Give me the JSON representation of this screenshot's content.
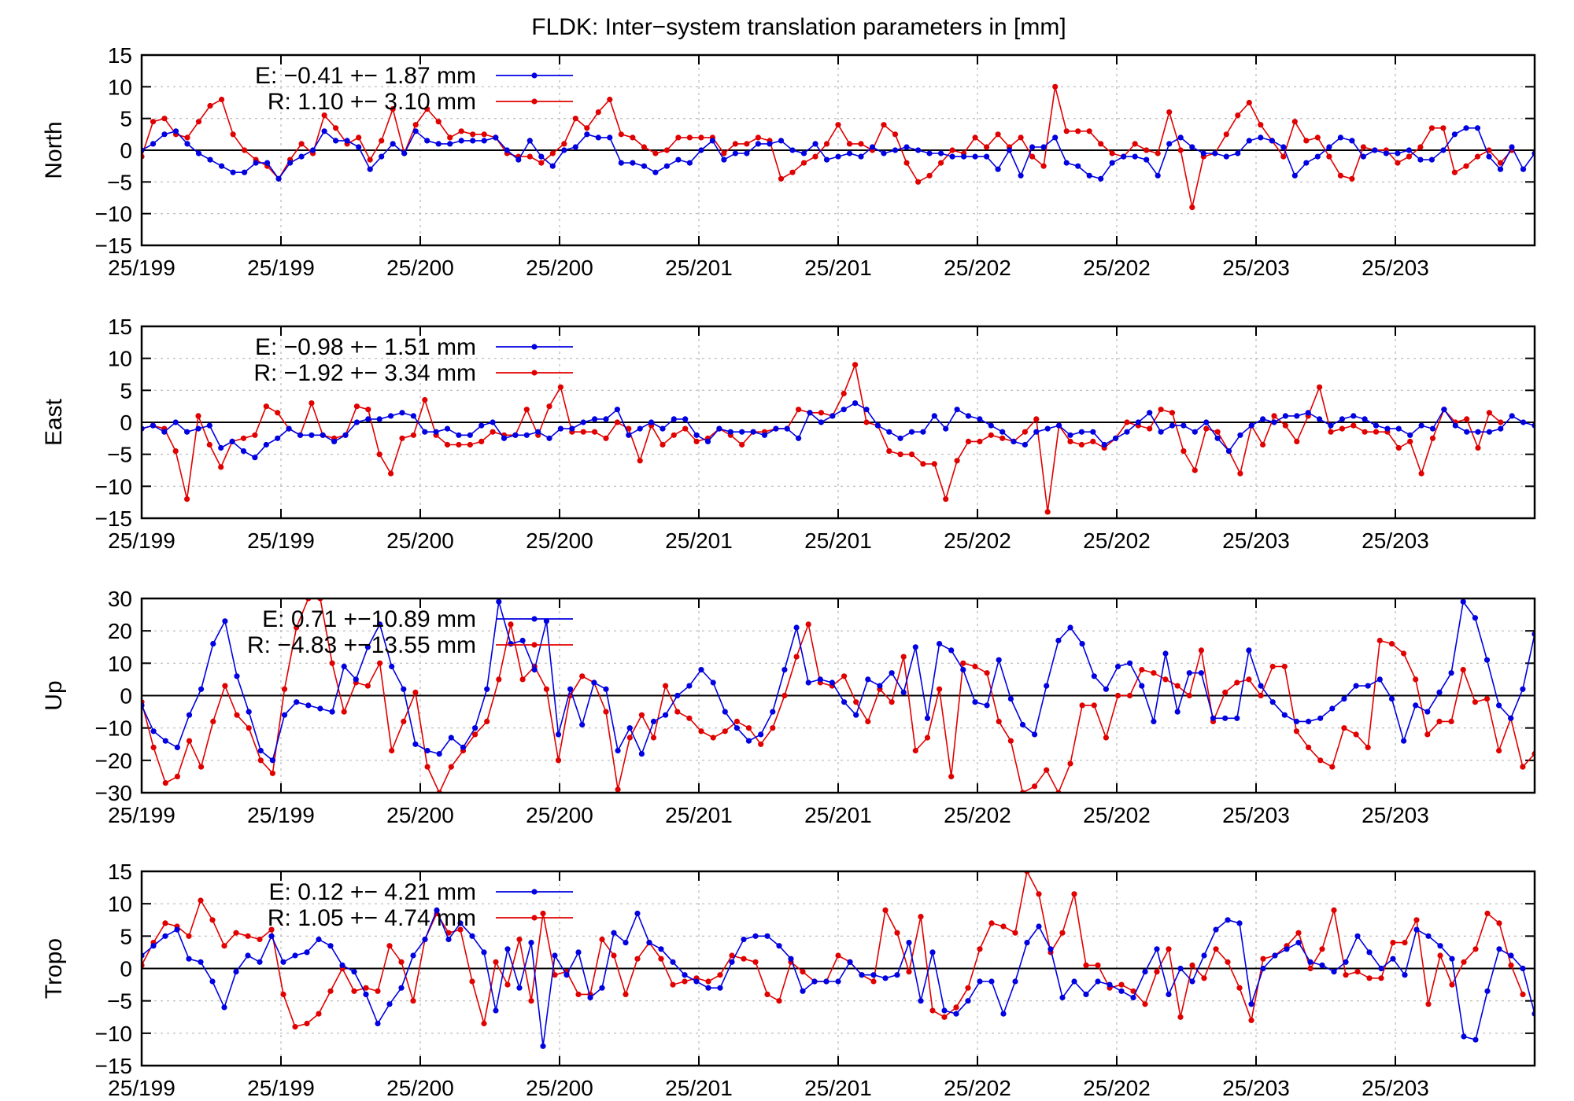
{
  "figure": {
    "title": "FLDK: Inter−system translation parameters in [mm]"
  },
  "colors": {
    "E": "#0000e0",
    "R": "#e00000"
  },
  "x_tick_labels": [
    "25/199",
    "25/199",
    "25/200",
    "25/200",
    "25/201",
    "25/201",
    "25/202",
    "25/202",
    "25/203",
    "25/203"
  ],
  "chart_data": [
    {
      "type": "line",
      "ylabel": "North",
      "ylim": [
        -15,
        15
      ],
      "yticks": [
        -15,
        -10,
        -5,
        0,
        5,
        10,
        15
      ],
      "grid": true,
      "legend_placement": "top-left",
      "series": [
        {
          "name": "E:  −0.41 +− 1.87 mm",
          "values": [
            0,
            1,
            2.5,
            3,
            1,
            -0.5,
            -1.5,
            -2.5,
            -3.5,
            -3.5,
            -2,
            -2,
            -4.5,
            -2,
            -1,
            0,
            3,
            1.5,
            1.5,
            0.5,
            -3,
            -1,
            1,
            -0.5,
            3,
            1.5,
            1,
            1,
            1.5,
            1.5,
            1.5,
            2,
            0,
            -1.5,
            1.5,
            -1,
            -2.5,
            0,
            0.5,
            2.5,
            2,
            2,
            -2,
            -2,
            -2.5,
            -3.5,
            -2.5,
            -1.5,
            -2,
            0,
            1.5,
            -1.5,
            -0.5,
            -0.5,
            1,
            1,
            1.5,
            0,
            -0.5,
            1,
            -1.5,
            -1,
            -0.5,
            -1,
            0.5,
            -0.5,
            0,
            0.5,
            0,
            -0.5,
            -0.5,
            -1,
            -1,
            -1,
            -1,
            -3,
            0,
            -4,
            0.5,
            0.5,
            2,
            -2,
            -2.5,
            -4,
            -4.5,
            -2,
            -1,
            -1,
            -1.5,
            -4,
            1,
            2,
            0.5,
            -0.5,
            -0.5,
            -1,
            -0.5,
            1.5,
            2,
            1.5,
            0.5,
            -4,
            -2,
            -1,
            0.5,
            2,
            1.5,
            -1,
            0,
            -0.5,
            -0.5,
            0,
            -1.5,
            -1.5,
            0,
            2.5,
            3.5,
            3.5,
            -1,
            -3,
            0.5,
            -3,
            -0.5
          ]
        },
        {
          "name": "R:   1.10 +− 3.10 mm",
          "values": [
            -1,
            4.5,
            5,
            2.5,
            2,
            4.5,
            7,
            8,
            2.5,
            0,
            -1.5,
            -2.5,
            -4.5,
            -1.5,
            1,
            -0.5,
            5.5,
            3.5,
            1,
            2,
            -1.5,
            1.5,
            6.5,
            -0.5,
            4,
            6.5,
            4.5,
            2,
            3,
            2.5,
            2.5,
            2,
            -0.5,
            -1,
            -1,
            -2,
            -0.5,
            1,
            5,
            3.5,
            6,
            8,
            2.5,
            2,
            0.5,
            -0.5,
            0,
            2,
            2,
            2,
            2,
            -0.5,
            1,
            1,
            2,
            1.5,
            -4.5,
            -3.5,
            -2,
            -1,
            1,
            4,
            1,
            1,
            0,
            4,
            2.5,
            -2,
            -5,
            -4,
            -2,
            0,
            -0.5,
            2,
            0.5,
            2.5,
            0.5,
            2,
            -1,
            -2.5,
            10,
            3,
            3,
            3,
            1,
            -0.5,
            -1,
            1,
            0,
            -0.5,
            6,
            0,
            -9,
            -1,
            -0.5,
            2.5,
            5.5,
            7.5,
            4,
            1.5,
            -1,
            4.5,
            1.5,
            2,
            -1,
            -4,
            -4.5,
            0.5,
            0,
            0,
            -2,
            -1,
            0.5,
            3.5,
            3.5,
            -3.5,
            -2.5,
            -1,
            0,
            -2,
            0
          ]
        }
      ]
    },
    {
      "type": "line",
      "ylabel": "East",
      "ylim": [
        -15,
        15
      ],
      "yticks": [
        -15,
        -10,
        -5,
        0,
        5,
        10,
        15
      ],
      "grid": true,
      "legend_placement": "top-left",
      "series": [
        {
          "name": "E:  −0.98 +− 1.51 mm",
          "values": [
            -1,
            -0.5,
            -1.5,
            0,
            -1.5,
            -1,
            -0.5,
            -4,
            -3,
            -4.5,
            -5.5,
            -3.5,
            -2.5,
            -1,
            -2,
            -2,
            -2,
            -3,
            -2,
            0,
            0.5,
            0.5,
            1,
            1.5,
            1,
            -1.5,
            -1.5,
            -1,
            -2,
            -2,
            -0.5,
            0,
            -2.5,
            -2,
            -2,
            -1.5,
            -2.5,
            -1,
            -1,
            0,
            0.5,
            0.5,
            2,
            -2,
            -1,
            0,
            -1,
            0.5,
            0.5,
            -2,
            -3,
            -1,
            -1.5,
            -1.5,
            -1.5,
            -2,
            -1,
            -1,
            -2.5,
            1.5,
            0,
            1,
            2,
            3,
            2,
            -0.5,
            -1.5,
            -2.5,
            -1.5,
            -1.5,
            1,
            -1,
            2,
            1,
            0.5,
            -0.5,
            -1.5,
            -3,
            -3.5,
            -1.5,
            -1,
            -0.5,
            -2,
            -1.5,
            -1.5,
            -3.5,
            -2.5,
            -1.5,
            0,
            1.5,
            -1.5,
            -0.5,
            -0.5,
            -1.5,
            0,
            -2.5,
            -4.5,
            -2,
            -0.5,
            0.5,
            0,
            1,
            1,
            1.5,
            0.5,
            -0.5,
            0.5,
            1,
            0.5,
            -0.5,
            -1,
            -1,
            -2,
            -0.5,
            -1,
            2,
            -0.5,
            -1.5,
            -1.5,
            -1.5,
            -1,
            1,
            0,
            -0.5
          ]
        },
        {
          "name": "R:  −1.92 +− 3.34 mm",
          "values": [
            -1,
            -0.5,
            -1,
            -4.5,
            -12,
            1,
            -3.5,
            -7,
            -3,
            -2.5,
            -2,
            2.5,
            1.5,
            -1,
            -2,
            3,
            -2,
            -2.5,
            -2,
            2.5,
            2,
            -5,
            -8,
            -2.5,
            -2,
            3.5,
            -2,
            -3.5,
            -3.5,
            -3.5,
            -3,
            -1.5,
            -2,
            -2,
            2,
            -2,
            2.5,
            5.5,
            -1.5,
            -1.5,
            -1.5,
            -2.5,
            0,
            -1,
            -6,
            -0.5,
            -3.5,
            -2,
            -1,
            -3,
            -2.5,
            -1,
            -2,
            -3.5,
            -1.5,
            -1.5,
            -1,
            -1,
            2,
            1.5,
            1.5,
            1,
            4.5,
            9,
            0,
            -0.5,
            -4.5,
            -5,
            -5,
            -6.5,
            -6.5,
            -12,
            -6,
            -3,
            -3,
            -2,
            -2.5,
            -3,
            -1.5,
            0.5,
            -14,
            -0.5,
            -3,
            -3.5,
            -3,
            -4,
            -2.5,
            0,
            -0.5,
            -1,
            2,
            1.5,
            -4.5,
            -7.5,
            -1,
            -1.5,
            -4.5,
            -8,
            -0.5,
            -3.5,
            1,
            -0.5,
            -3,
            1,
            5.5,
            -1.5,
            -1,
            -0.5,
            -1.5,
            -1.5,
            -1.5,
            -4,
            -3,
            -8,
            -2.5,
            2,
            0,
            0.5,
            -4,
            1.5,
            0
          ]
        }
      ]
    },
    {
      "type": "line",
      "ylabel": "Up",
      "ylim": [
        -30,
        30
      ],
      "yticks": [
        -30,
        -20,
        -10,
        0,
        10,
        20,
        30
      ],
      "grid": true,
      "legend_placement": "top-left",
      "series": [
        {
          "name": "E:   0.71 +−10.89 mm",
          "values": [
            -3,
            -11,
            -14,
            -16,
            -6,
            2,
            16,
            23,
            6,
            -5,
            -17,
            -20,
            -6,
            -2,
            -3,
            -4,
            -5,
            9,
            5,
            15,
            22,
            9,
            2,
            -15,
            -17,
            -18,
            -13,
            -16,
            -10,
            2,
            29,
            16,
            17,
            8,
            23,
            -12,
            2,
            -9,
            4,
            2,
            -17,
            -10,
            -18,
            -8,
            -6,
            0,
            3,
            8,
            4,
            -5,
            -10,
            -14,
            -12,
            -5,
            8,
            21,
            4,
            5,
            4,
            -2,
            -6,
            5,
            3,
            7,
            1,
            15,
            -7,
            16,
            14,
            8,
            -2,
            -3,
            11,
            -1,
            -9,
            -12,
            3,
            17,
            21,
            16,
            6,
            2,
            9,
            10,
            3,
            -8,
            13,
            -5,
            7,
            7,
            -7,
            -7,
            -7,
            14,
            3,
            -2,
            -6,
            -8,
            -8,
            -7,
            -4,
            -1,
            3,
            3,
            5,
            -1,
            -14,
            -3,
            -5,
            1,
            7,
            29,
            24,
            11,
            -3,
            -7,
            2,
            19
          ]
        },
        {
          "name": "R:  −4.83 +−13.55 mm",
          "values": [
            -2,
            -16,
            -27,
            -25,
            -14,
            -22,
            -8,
            3,
            -6,
            -10,
            -20,
            -24,
            2,
            21,
            30,
            30,
            10,
            -5,
            4,
            3,
            10,
            -17,
            -8,
            1,
            -22,
            -33,
            -22,
            -17,
            -12,
            -8,
            5,
            22,
            5,
            9,
            2,
            -20,
            0,
            6,
            4,
            -5,
            -29,
            -13,
            -6,
            -13,
            3,
            -5,
            -7,
            -11,
            -13,
            -11,
            -8,
            -10,
            -15,
            -10,
            0,
            12,
            22,
            4,
            3,
            6,
            -2,
            -8,
            2,
            -2,
            12,
            -17,
            -13,
            2,
            -25,
            10,
            9,
            7,
            -8,
            -14,
            -30,
            -28,
            -23,
            -32,
            -21,
            -3,
            -3,
            -13,
            0,
            0,
            8,
            7,
            5,
            3,
            0,
            14,
            -8,
            1,
            4,
            5,
            0,
            9,
            9,
            -11,
            -16,
            -20,
            -22,
            -10,
            -12,
            -16,
            17,
            16,
            13,
            5,
            -12,
            -8,
            -8,
            8,
            -2,
            -1,
            -17,
            -7,
            -22,
            -18,
            -4,
            1
          ]
        }
      ]
    },
    {
      "type": "line",
      "ylabel": "Tropo",
      "ylim": [
        -15,
        15
      ],
      "yticks": [
        -15,
        -10,
        -5,
        0,
        5,
        10,
        15
      ],
      "grid": true,
      "legend_placement": "top-left",
      "series": [
        {
          "name": "E:   0.12 +− 4.21 mm",
          "values": [
            2,
            3.5,
            5,
            6,
            1.5,
            1,
            -2,
            -6,
            -0.5,
            2,
            1,
            5,
            1,
            2,
            2.5,
            4.5,
            3.5,
            0.5,
            -0.5,
            -4,
            -8.5,
            -5.5,
            -3,
            2,
            4.5,
            9,
            4.5,
            7,
            5,
            2.5,
            -6.5,
            3,
            -3,
            4,
            -12,
            2,
            -1,
            2.5,
            -4.5,
            -3,
            5.5,
            4,
            8.5,
            4,
            3,
            1,
            -1,
            -2,
            -3,
            -3,
            1,
            4.5,
            5,
            5,
            3.5,
            1.5,
            -3.5,
            -2,
            -2,
            -2,
            1,
            -1,
            -1,
            -1.5,
            -1,
            4,
            -5,
            2.5,
            -6.5,
            -7,
            -5,
            -2,
            -2,
            -7,
            -2,
            4,
            6.5,
            3,
            -4.5,
            -2,
            -4,
            -2,
            -2.5,
            -3.5,
            -4.5,
            -0.5,
            3,
            -4,
            0,
            -2,
            2,
            6,
            7.5,
            7,
            -5.5,
            0,
            2,
            3,
            4,
            1,
            0.5,
            -0.5,
            1,
            5,
            2.5,
            0,
            1.5,
            -1,
            6,
            5,
            3.5,
            1.5,
            -10.5,
            -11,
            -3.5,
            3,
            2,
            0,
            -7
          ]
        },
        {
          "name": "R:   1.05 +− 4.74 mm",
          "values": [
            0.5,
            4,
            7,
            6.5,
            5,
            10.5,
            7.5,
            3.5,
            5.5,
            5,
            4.5,
            6,
            -4,
            -9,
            -8.5,
            -7,
            -3.5,
            0,
            -3.5,
            -3,
            -3.5,
            3.5,
            1,
            -5,
            4.5,
            8.5,
            5.5,
            6,
            -2,
            -8.5,
            1,
            -2.5,
            4.5,
            -5,
            8.5,
            -1,
            -0.5,
            -4,
            -4,
            4.5,
            2,
            -4,
            1.5,
            4,
            1.5,
            -2.5,
            -2,
            -1.5,
            -2,
            -1,
            2,
            1.5,
            1,
            -4,
            -5,
            1,
            -0.5,
            -2,
            -2,
            2,
            1,
            -1,
            -2,
            9,
            5.5,
            -0.5,
            8,
            -6.5,
            -7.5,
            -6,
            -3,
            3,
            7,
            6.5,
            5.5,
            15.5,
            11.5,
            2.5,
            5.5,
            11.5,
            0.5,
            0.5,
            -3,
            -2.5,
            -3.5,
            -5.5,
            -0.5,
            3,
            -7.5,
            0.5,
            -1.5,
            3,
            1,
            -3,
            -8,
            1.5,
            2,
            3.5,
            5.5,
            0,
            3,
            9,
            -1,
            -0.5,
            -1.5,
            -1.5,
            4,
            4,
            7.5,
            -5.5,
            2,
            -2.5,
            1,
            3,
            8.5,
            7,
            0.5,
            -4
          ]
        }
      ]
    }
  ]
}
